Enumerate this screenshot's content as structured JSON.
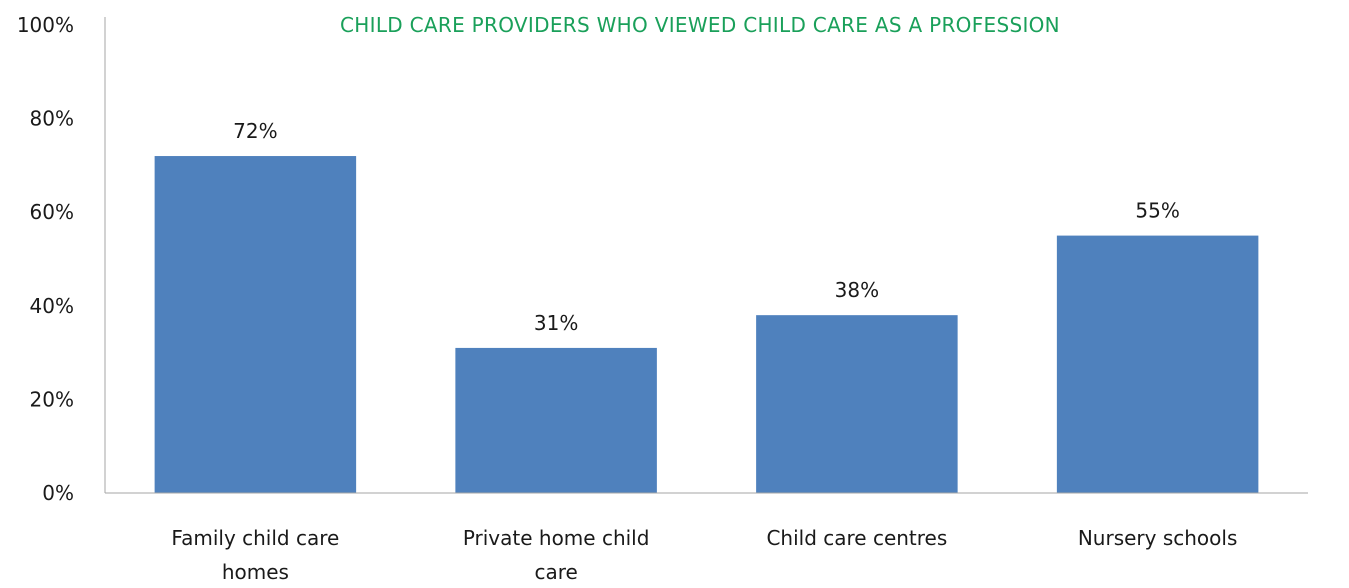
{
  "chart_data": {
    "type": "bar",
    "title": "CHILD CARE PROVIDERS WHO VIEWED CHILD CARE AS A PROFESSION",
    "categories": [
      [
        "Family child care",
        "homes"
      ],
      [
        "Private home child",
        "care"
      ],
      [
        "Child care centres"
      ],
      [
        "Nursery schools"
      ]
    ],
    "values": [
      72,
      31,
      38,
      55
    ],
    "data_labels": [
      "72%",
      "31%",
      "38%",
      "55%"
    ],
    "yticks": [
      0,
      20,
      40,
      60,
      80,
      100
    ],
    "ytick_labels": [
      "0%",
      "20%",
      "40%",
      "60%",
      "80%",
      "100%"
    ],
    "ylim": [
      0,
      100
    ],
    "grid": false,
    "legend": "none",
    "colors": {
      "bar": "#4f81bd",
      "title": "#1aa05a",
      "axis": "#a6a6a6",
      "text": "#1a1a1a"
    }
  }
}
